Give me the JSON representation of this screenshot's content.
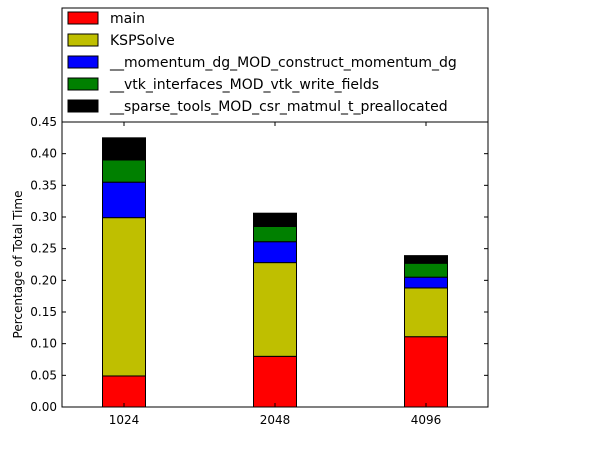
{
  "chart_data": {
    "type": "bar",
    "stacked": true,
    "title": "",
    "xlabel": "",
    "ylabel": "Percentage of Total Time",
    "ylim": [
      0,
      0.45
    ],
    "yticks": [
      "0.00",
      "0.05",
      "0.10",
      "0.15",
      "0.20",
      "0.25",
      "0.30",
      "0.35",
      "0.40",
      "0.45"
    ],
    "categories": [
      "1024",
      "2048",
      "4096"
    ],
    "grid": false,
    "legend_position": "top",
    "series": [
      {
        "name": "main",
        "color": "#ff0000",
        "values": [
          0.049,
          0.08,
          0.111
        ]
      },
      {
        "name": "KSPSolve",
        "color": "#bfbf00",
        "values": [
          0.25,
          0.148,
          0.077
        ]
      },
      {
        "name": "__momentum_dg_MOD_construct_momentum_dg",
        "color": "#0000ff",
        "values": [
          0.056,
          0.033,
          0.017
        ]
      },
      {
        "name": "__vtk_interfaces_MOD_vtk_write_fields",
        "color": "#008000",
        "values": [
          0.035,
          0.024,
          0.022
        ]
      },
      {
        "name": "__sparse_tools_MOD_csr_matmul_t_preallocated",
        "color": "#000000",
        "values": [
          0.035,
          0.021,
          0.012
        ]
      }
    ]
  }
}
